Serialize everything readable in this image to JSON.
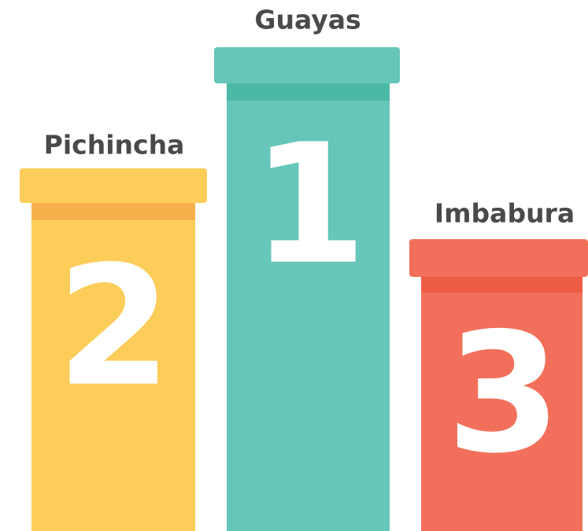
{
  "podium": [
    {
      "place": "2",
      "label": "Pichincha"
    },
    {
      "place": "1",
      "label": "Guayas"
    },
    {
      "place": "3",
      "label": "Imbabura"
    }
  ]
}
